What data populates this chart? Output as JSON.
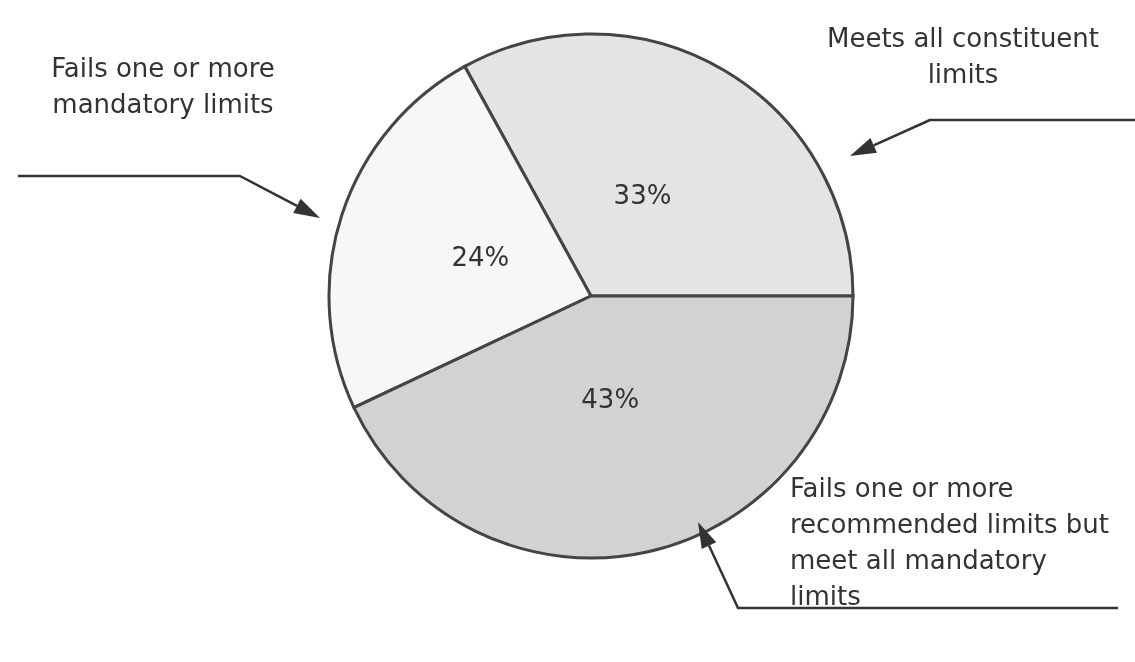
{
  "chart_data": {
    "type": "pie",
    "categories": [
      "Meets all constituent limits",
      "Fails one or more mandatory limits",
      "Fails one or more recommended limits but meet all mandatory limits"
    ],
    "values": [
      33,
      24,
      43
    ],
    "colors": [
      "#e4e4e4",
      "#f7f7f7",
      "#d2d2d2"
    ],
    "value_labels": [
      "33%",
      "24%",
      "43%"
    ]
  }
}
